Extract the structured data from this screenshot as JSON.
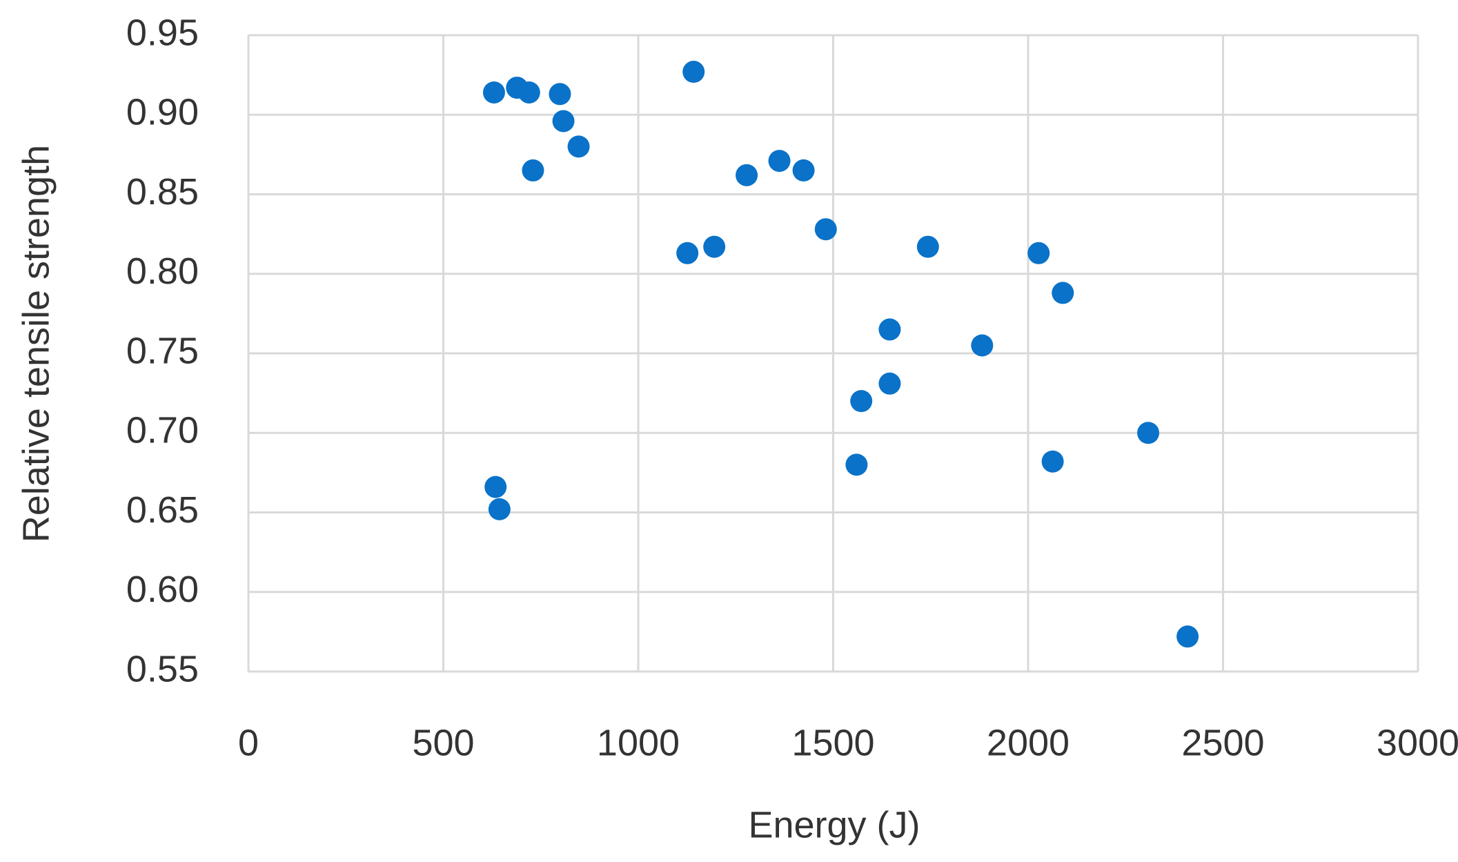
{
  "chart_data": {
    "type": "scatter",
    "x_label": "Energy (J)",
    "y_label": "Relative tensile strength",
    "color": "#0a72c8",
    "grid": true,
    "xlim": [
      0,
      3000
    ],
    "xticks": [
      0,
      500,
      1000,
      1500,
      2000,
      2500,
      3000
    ],
    "ylim": [
      0.55,
      0.95
    ],
    "yticks": [
      0.55,
      {
        "value": 0.6,
        "label": "0.60"
      },
      0.65,
      {
        "value": 0.7,
        "label": "0.70"
      },
      0.75,
      {
        "value": 0.8,
        "label": "0.80"
      },
      0.85,
      {
        "value": 0.9,
        "label": "0.90"
      },
      0.95
    ],
    "x": [
      630,
      689,
      720,
      799,
      808,
      847,
      730,
      1142,
      1278,
      1362,
      1424,
      1126,
      1195,
      1481,
      1743,
      2027,
      2089,
      1645,
      1882,
      1572,
      1645,
      1560,
      2063,
      2308,
      634,
      644,
      2409
    ],
    "values": [
      0.914,
      0.917,
      0.914,
      0.913,
      0.896,
      0.88,
      0.865,
      0.927,
      0.862,
      0.871,
      0.865,
      0.813,
      0.817,
      0.828,
      0.817,
      0.813,
      0.788,
      0.765,
      0.755,
      0.72,
      0.731,
      0.68,
      0.682,
      0.7,
      0.666,
      0.652,
      0.572
    ]
  }
}
